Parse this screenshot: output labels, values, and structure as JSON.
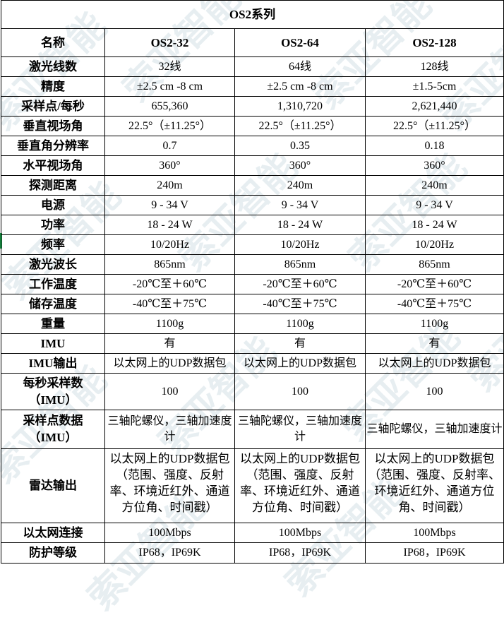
{
  "title": "OS2系列",
  "watermark": "索亚智能",
  "rows": [
    {
      "label": "名称",
      "values": [
        "OS2-32",
        "OS2-64",
        "OS2-128"
      ]
    },
    {
      "label": "激光线数",
      "values": [
        "32线",
        "64线",
        "128线"
      ]
    },
    {
      "label": "精度",
      "values": [
        "±2.5 cm -8 cm",
        "±2.5 cm -8 cm",
        "±1.5-5cm"
      ]
    },
    {
      "label": "采样点/每秒",
      "values": [
        "655,360",
        "1,310,720",
        "2,621,440"
      ]
    },
    {
      "label": "垂直视场角",
      "values": [
        "22.5°（±11.25°）",
        "22.5°（±11.25°）",
        "22.5°（±11.25°）"
      ]
    },
    {
      "label": "垂直角分辨率",
      "values": [
        "0.7",
        "0.35",
        "0.18"
      ]
    },
    {
      "label": "水平视场角",
      "values": [
        "360°",
        "360°",
        "360°"
      ]
    },
    {
      "label": "探测距离",
      "values": [
        "240m",
        "240m",
        "240m"
      ]
    },
    {
      "label": "电源",
      "values": [
        "9 - 34 V",
        "9 - 34 V",
        "9 - 34 V"
      ]
    },
    {
      "label": "功率",
      "values": [
        "18 - 24 W",
        "18 - 24 W",
        "18 - 24 W"
      ]
    },
    {
      "label": "频率",
      "values": [
        "10/20Hz",
        "10/20Hz",
        "10/20Hz"
      ]
    },
    {
      "label": "激光波长",
      "values": [
        "865nm",
        "865nm",
        "865nm"
      ]
    },
    {
      "label": "工作温度",
      "values": [
        "-20℃至＋60℃",
        "-20℃至＋60℃",
        "-20℃至＋60℃"
      ]
    },
    {
      "label": "储存温度",
      "values": [
        "-40℃至＋75℃",
        "-40℃至＋75℃",
        "-40℃至＋75℃"
      ]
    },
    {
      "label": "重量",
      "values": [
        "1100g",
        "1100g",
        "1100g"
      ]
    },
    {
      "label": "IMU",
      "values": [
        "有",
        "有",
        "有"
      ]
    },
    {
      "label": "IMU输出",
      "values": [
        "以太网上的UDP数据包",
        "以太网上的UDP数据包",
        "以太网上的UDP数据包"
      ]
    },
    {
      "label": "每秒采样数（IMU）",
      "values": [
        "100",
        "100",
        "100"
      ]
    },
    {
      "label": "采样点数据（IMU）",
      "values": [
        "三轴陀螺仪，三轴加速度计",
        "三轴陀螺仪，三轴加速度计",
        "三轴陀螺仪，三轴加速度计"
      ]
    },
    {
      "label": "雷达输出",
      "values": [
        "以太网上的UDP数据包（范围、强度、反射率、环境近红外、通道方位角、时间戳）",
        "以太网上的UDP数据包（范围、强度、反射率、环境近红外、通道方位角、时间戳）",
        "以太网上的UDP数据包（范围、强度、反射率、环境近红外、通道方位角、时间戳）"
      ]
    },
    {
      "label": "以太网连接",
      "values": [
        "100Mbps",
        "100Mbps",
        "100Mbps"
      ]
    },
    {
      "label": "防护等级",
      "values": [
        "IP68，IP69K",
        "IP68，IP69K",
        "IP68，IP69K"
      ]
    }
  ]
}
